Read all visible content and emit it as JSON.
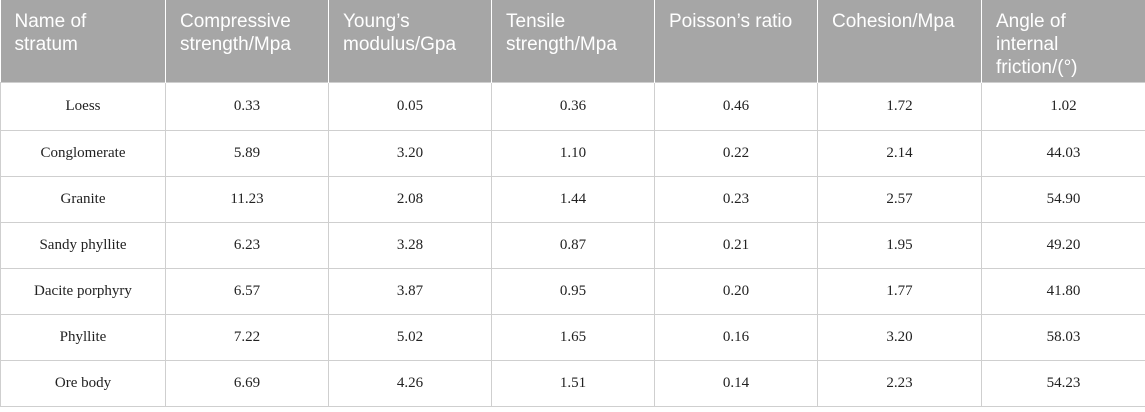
{
  "table": {
    "headers": [
      "Name of stratum",
      "Compressive strength/Mpa",
      "Young’s modulus/Gpa",
      "Tensile strength/Mpa",
      "Poisson’s ratio",
      "Cohesion/Mpa",
      "Angle of internal friction/(°)"
    ],
    "rows": [
      [
        "Loess",
        "0.33",
        "0.05",
        "0.36",
        "0.46",
        "1.72",
        "1.02"
      ],
      [
        "Conglomerate",
        "5.89",
        "3.20",
        "1.10",
        "0.22",
        "2.14",
        "44.03"
      ],
      [
        "Granite",
        "11.23",
        "2.08",
        "1.44",
        "0.23",
        "2.57",
        "54.90"
      ],
      [
        "Sandy phyllite",
        "6.23",
        "3.28",
        "0.87",
        "0.21",
        "1.95",
        "49.20"
      ],
      [
        "Dacite porphyry",
        "6.57",
        "3.87",
        "0.95",
        "0.20",
        "1.77",
        "41.80"
      ],
      [
        "Phyllite",
        "7.22",
        "5.02",
        "1.65",
        "0.16",
        "3.20",
        "58.03"
      ],
      [
        "Ore body",
        "6.69",
        "4.26",
        "1.51",
        "0.14",
        "2.23",
        "54.23"
      ]
    ]
  },
  "colors": {
    "header_background": "#a6a6a6",
    "header_text": "#ffffff",
    "grid_line": "#cfcfcf"
  }
}
